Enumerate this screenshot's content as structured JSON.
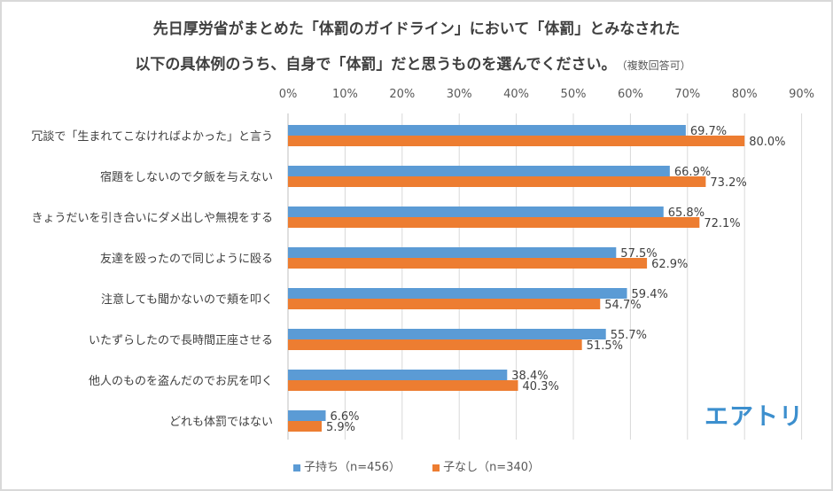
{
  "chart_data": {
    "type": "bar",
    "orientation": "horizontal",
    "title": "先日厚労省がまとめた「体罰のガイドライン」において「体罰」とみなされた",
    "subtitle": "以下の具体例のうち、自身で「体罰」だと思うものを選んでください。",
    "subtitle_note": "（複数回答可）",
    "categories": [
      "冗談で「生まれてこなければよかった」と言う",
      "宿題をしないので夕飯を与えない",
      "きょうだいを引き合いにダメ出しや無視をする",
      "友達を殴ったので同じように殴る",
      "注意しても聞かないので頬を叩く",
      "いたずらしたので長時間正座させる",
      "他人のものを盗んだのでお尻を叩く",
      "どれも体罰ではない"
    ],
    "series": [
      {
        "name": "子持ち（n=456）",
        "color": "#5b9bd5",
        "values": [
          69.7,
          66.9,
          65.8,
          57.5,
          59.4,
          55.7,
          38.4,
          6.6
        ],
        "labels": [
          "69.7%",
          "66.9%",
          "65.8%",
          "57.5%",
          "59.4%",
          "55.7%",
          "38.4%",
          "6.6%"
        ]
      },
      {
        "name": "子なし（n=340）",
        "color": "#ed7d31",
        "values": [
          80.0,
          73.2,
          72.1,
          62.9,
          54.7,
          51.5,
          40.3,
          5.9
        ],
        "labels": [
          "80.0%",
          "73.2%",
          "72.1%",
          "62.9%",
          "54.7%",
          "51.5%",
          "40.3%",
          "5.9%"
        ]
      }
    ],
    "xlim": [
      0,
      90
    ],
    "xticks": [
      "0%",
      "10%",
      "20%",
      "30%",
      "40%",
      "50%",
      "60%",
      "70%",
      "80%",
      "90%"
    ],
    "xtick_values": [
      0,
      10,
      20,
      30,
      40,
      50,
      60,
      70,
      80,
      90
    ],
    "grid": true,
    "xaxis_position": "top",
    "legend_position": "bottom",
    "xlabel": "",
    "ylabel": ""
  },
  "logo": {
    "text": "エアトリ",
    "color": "#3c8fce"
  }
}
